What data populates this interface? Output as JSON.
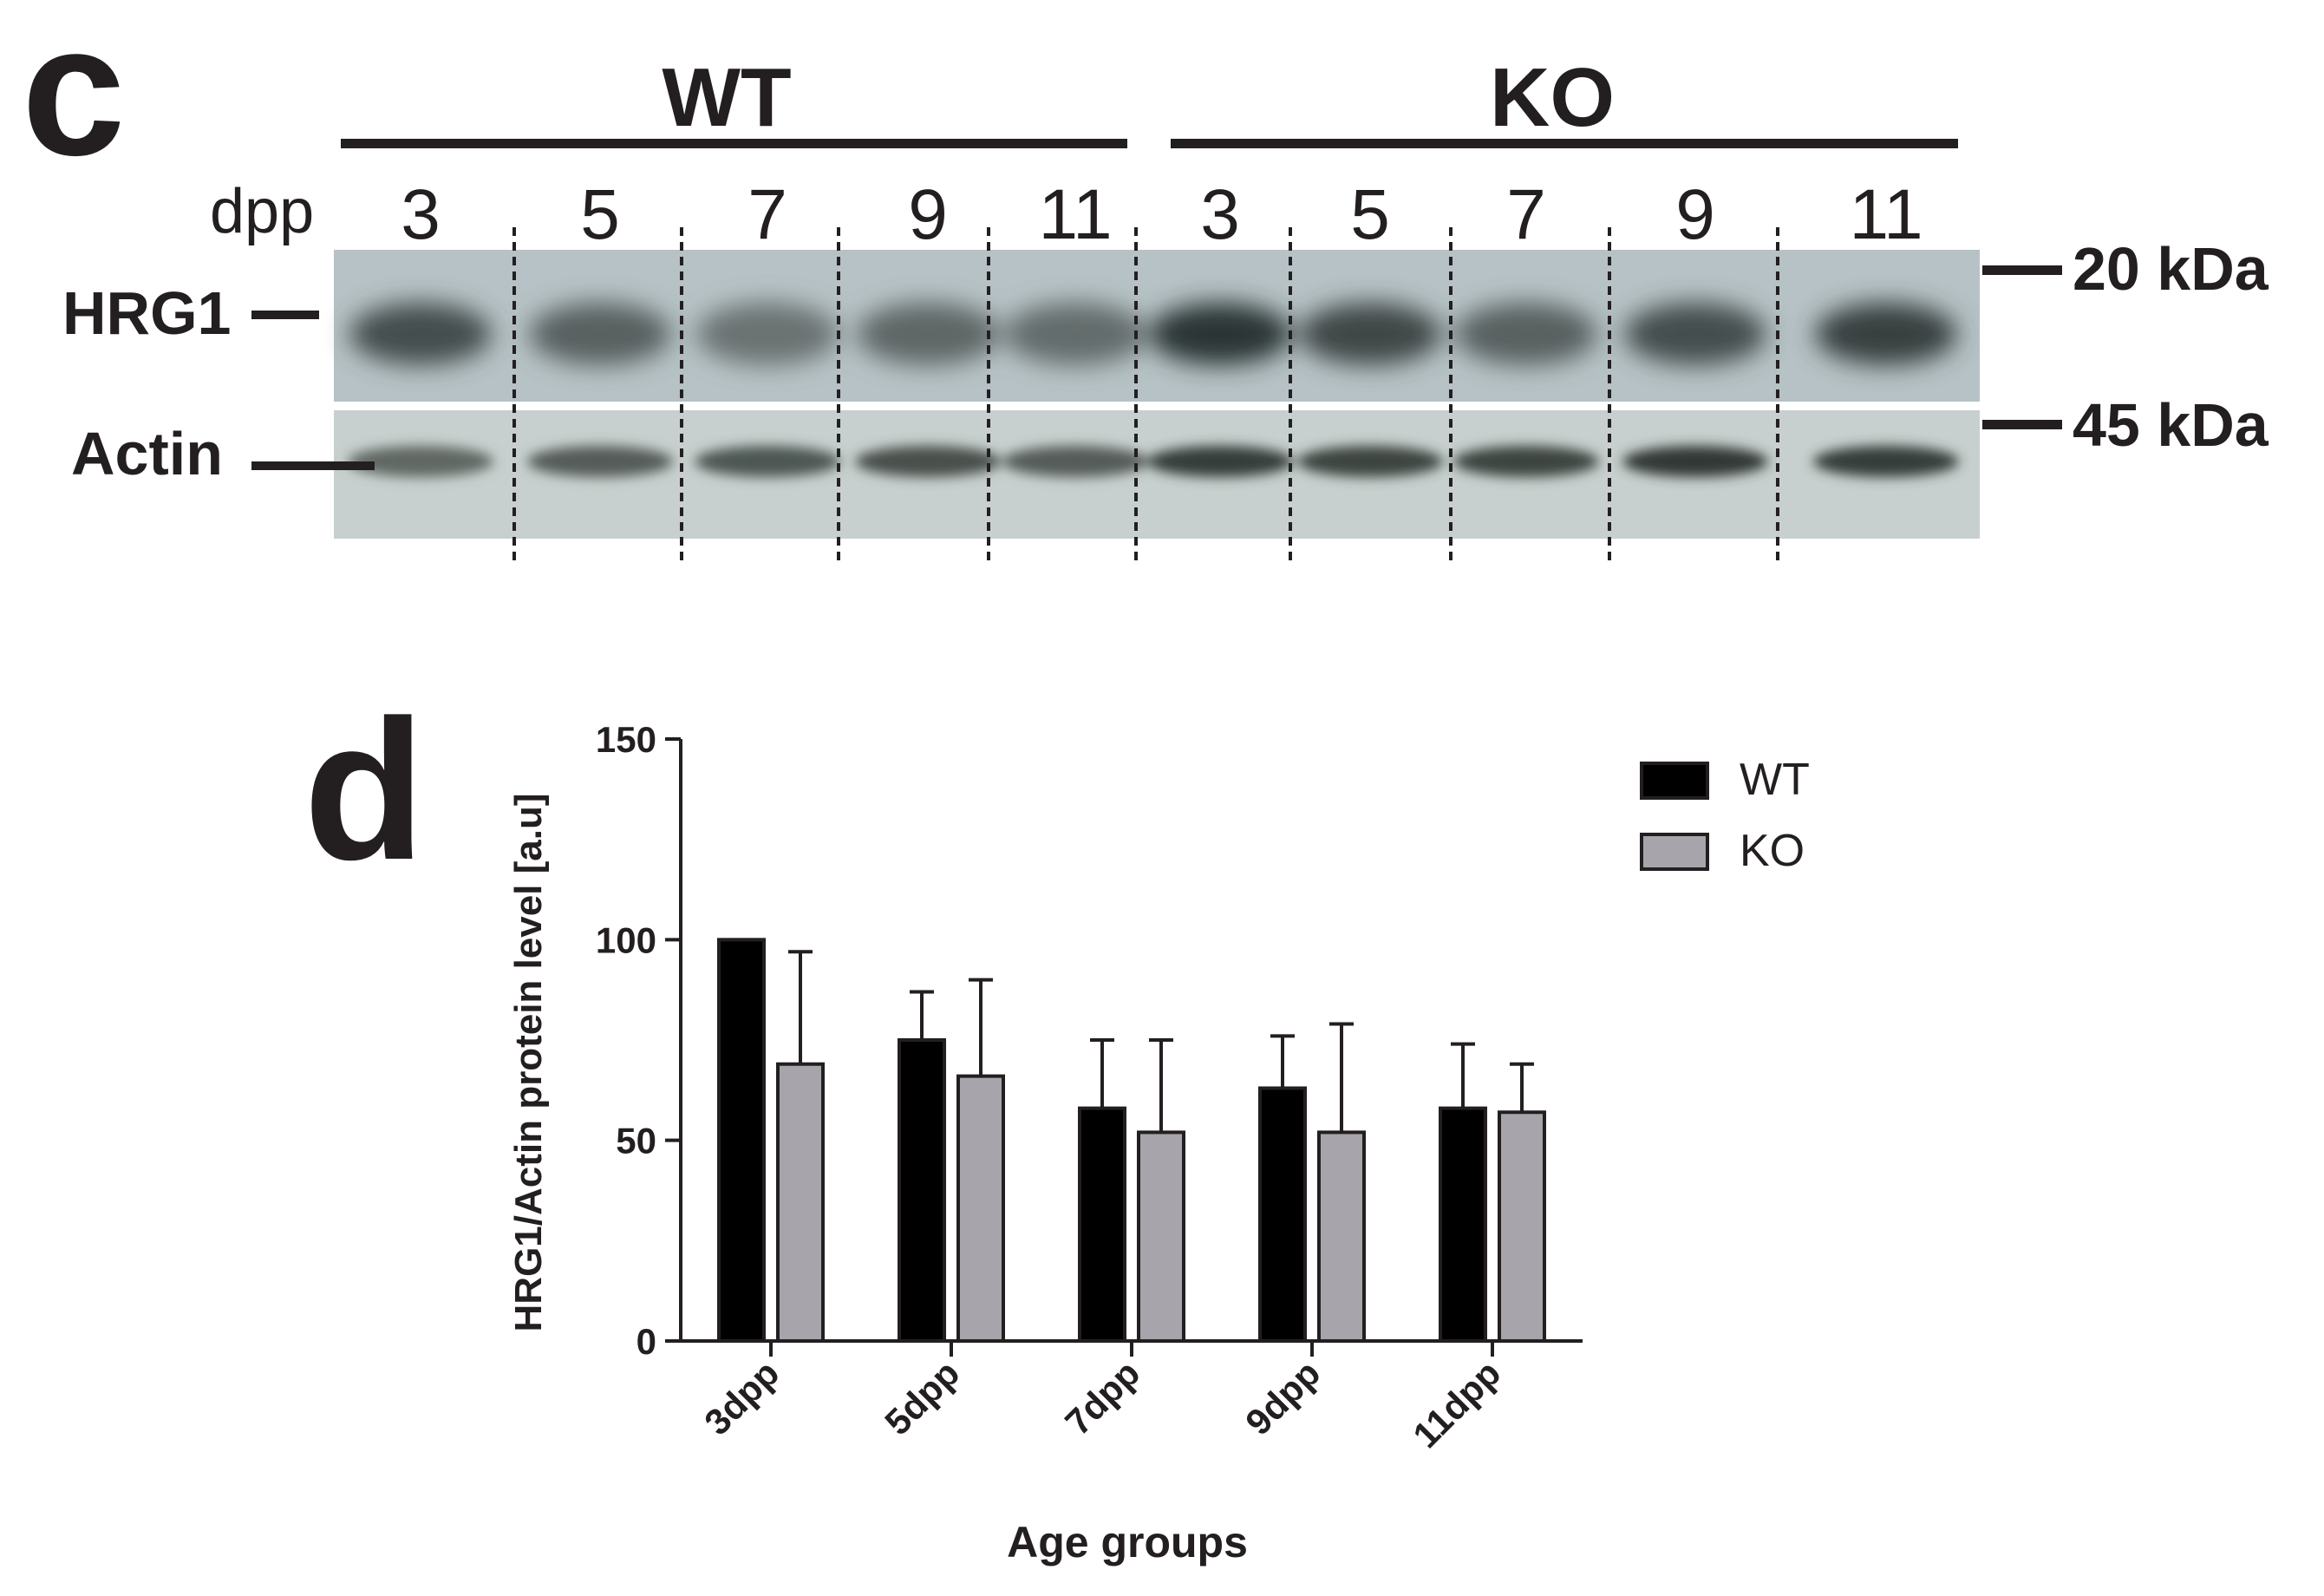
{
  "panel_c": {
    "label": "c",
    "groups": [
      {
        "name": "WT",
        "lanes": [
          "3",
          "5",
          "7",
          "9",
          "11"
        ]
      },
      {
        "name": "KO",
        "lanes": [
          "3",
          "5",
          "7",
          "9",
          "11"
        ]
      }
    ],
    "dpp_label": "dpp",
    "rows": [
      {
        "name": "HRG1",
        "marker": "20 kDa"
      },
      {
        "name": "Actin",
        "marker": "45 kDa"
      }
    ],
    "intensities": {
      "HRG1": [
        0.65,
        0.5,
        0.35,
        0.45,
        0.4,
        0.85,
        0.7,
        0.5,
        0.65,
        0.75
      ],
      "Actin": [
        0.45,
        0.55,
        0.6,
        0.65,
        0.55,
        0.8,
        0.75,
        0.75,
        0.85,
        0.8
      ]
    }
  },
  "chart_data": {
    "panel_label": "d",
    "type": "bar",
    "title": "",
    "categories": [
      "3dpp",
      "5dpp",
      "7dpp",
      "9dpp",
      "11dpp"
    ],
    "series": [
      {
        "name": "WT",
        "color": "#000000",
        "values": [
          100,
          75,
          58,
          63,
          58
        ],
        "error": [
          0,
          12,
          17,
          13,
          16
        ]
      },
      {
        "name": "KO",
        "color": "#a7a5ab",
        "values": [
          69,
          66,
          52,
          52,
          57
        ],
        "error": [
          28,
          24,
          23,
          27,
          12
        ]
      }
    ],
    "xlabel": "Age groups",
    "ylabel": "HRG1/Actin protein level [a.u]",
    "ylim": [
      0,
      150
    ],
    "yticks": [
      0,
      50,
      100,
      150
    ],
    "legend_position": "top-right",
    "grid": false
  }
}
